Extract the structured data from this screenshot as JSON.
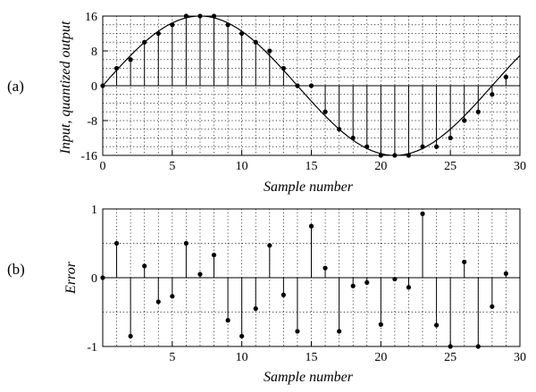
{
  "chart_data": [
    {
      "id": "a",
      "type": "stem+line",
      "panel_tag": "(a)",
      "xlabel": "Sample number",
      "ylabel": "Input, quantized output",
      "xlim": [
        0,
        30
      ],
      "ylim": [
        -16,
        16
      ],
      "x_ticks": [
        0,
        5,
        10,
        15,
        20,
        25,
        30
      ],
      "y_ticks": [
        -16,
        -8,
        0,
        8,
        16
      ],
      "y_tick_labels": [
        "-16",
        "-8",
        "0",
        "8",
        "16"
      ],
      "grid": "dotted, x every 1, y every 2",
      "input_curve": {
        "description": "sinusoid",
        "amplitude": 16,
        "period_samples": 28,
        "phase_offset_samples": 0
      },
      "x": [
        0,
        1,
        2,
        3,
        4,
        5,
        6,
        7,
        8,
        9,
        10,
        11,
        12,
        13,
        14,
        15,
        16,
        17,
        18,
        19,
        20,
        21,
        22,
        23,
        24,
        25,
        26,
        27,
        28,
        29
      ],
      "quantized": [
        0,
        4,
        6,
        10,
        12,
        14,
        16,
        16,
        16,
        14,
        12,
        10,
        8,
        4,
        0,
        0,
        -6,
        -10,
        -12,
        -14,
        -16,
        -16,
        -16,
        -14,
        -14,
        -12,
        -8,
        -6,
        -2,
        2
      ]
    },
    {
      "id": "b",
      "type": "stem",
      "panel_tag": "(b)",
      "xlabel": "Sample number",
      "ylabel": "Error",
      "xlim": [
        0,
        30
      ],
      "ylim": [
        -1,
        1
      ],
      "x_ticks": [
        5,
        10,
        15,
        20,
        25,
        30
      ],
      "y_ticks": [
        -1,
        0,
        1
      ],
      "y_tick_labels": [
        "-1",
        "0",
        "1"
      ],
      "grid": "dotted, x every 1, y every 0.5",
      "x": [
        0,
        1,
        2,
        3,
        4,
        5,
        6,
        7,
        8,
        9,
        10,
        11,
        12,
        13,
        14,
        15,
        16,
        17,
        18,
        19,
        20,
        21,
        22,
        23,
        24,
        25,
        26,
        27,
        28,
        29
      ],
      "values": [
        0,
        0.5,
        -0.85,
        0.17,
        -0.35,
        -0.27,
        0.5,
        0.05,
        0.33,
        -0.62,
        -0.85,
        -0.45,
        0.47,
        -0.25,
        -0.78,
        0.75,
        0.14,
        -0.78,
        -0.12,
        -0.07,
        -0.68,
        -0.02,
        -0.14,
        0.93,
        -0.69,
        -1.0,
        0.23,
        -1.0,
        -0.42,
        0.06
      ]
    }
  ]
}
